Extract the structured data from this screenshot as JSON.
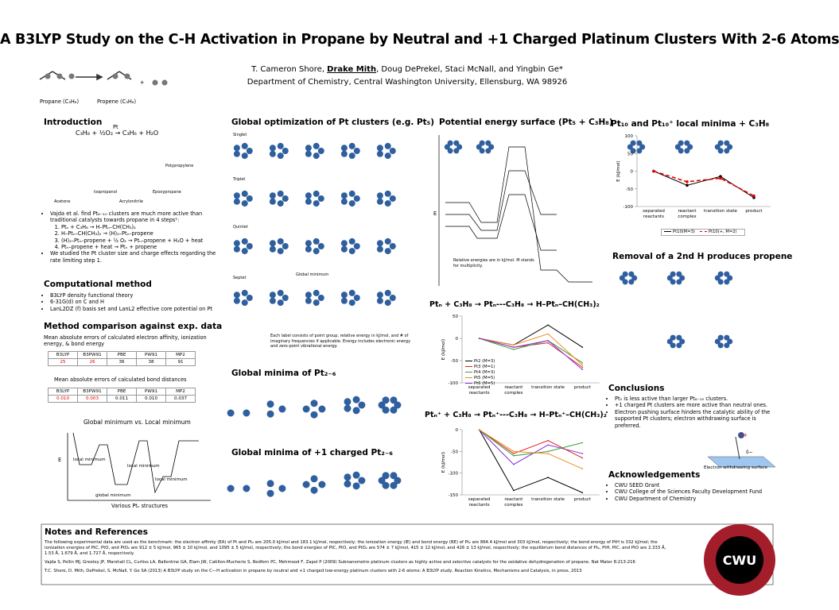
{
  "header": {
    "title": "A B3LYP Study on the C-H Activation in Propane by Neutral and +1 Charged Platinum Clusters With 2-6 Atoms",
    "authors_pre": "T. Cameron Shore, ",
    "author_bold": "Drake Mith",
    "authors_post": ", Doug DePrekel, Staci McNall, and Yingbin Ge*",
    "affiliation": "Department of Chemistry, Central Washington University, Ellensburg, WA 98926"
  },
  "reaction": {
    "propane": "Propane (C₃H₈)",
    "propene": "Propene (C₃H₆)",
    "plus": "+"
  },
  "intro": {
    "heading": "Introduction",
    "equation": "C₃H₈ + ½O₂ → C₃H₆ + H₂O",
    "catalyst": "Pt",
    "products": [
      "Polypropylene",
      "Acetone",
      "Isopropanol",
      "Epoxypropane",
      "Acrylonitrile"
    ],
    "bullet_first": "Vajda et al. find Pt₈₋₁₀ clusters are much more active than traditional catalysts towards propane in 4 steps¹:",
    "steps": [
      "Ptₙ + C₃H₈ → H–Ptₙ–CH(CH₃)₂",
      "H–Ptₙ–CH(CH₃)₂ → (H)₂–Ptₙ–propene",
      "(H)₂–Ptₙ–propene + ½ O₂ → Ptₙ–propene + H₂O + heat",
      "Ptₙ–propene + heat → Ptₙ + propene"
    ],
    "bullet_last": "We studied the Pt cluster size and charge effects regarding the rate limiting step 1."
  },
  "computational": {
    "heading": "Computational method",
    "bullets": [
      "B3LYP density functional theory",
      "6-31G(d) on C and H",
      "LanL2DZ (f) basis set and LanL2 effective core potential on Pt"
    ]
  },
  "comparison": {
    "heading": "Method comparison against exp. data",
    "caption1": "Mean absolute errors of calculated electron affinity, ionization energy, & bond energy",
    "table1": {
      "header": [
        "B3LYP",
        "B3PW91",
        "PBE",
        "PW91",
        "MP2"
      ],
      "row": [
        "25",
        "26",
        "36",
        "38",
        "91"
      ]
    },
    "caption2": "Mean absolute errors of calculated bond distances",
    "table2": {
      "header": [
        "B3LYP",
        "B3PW91",
        "PBE",
        "PW91",
        "MP2"
      ],
      "row": [
        "0.010",
        "0.003",
        "0.011",
        "0.010",
        "0.037"
      ]
    }
  },
  "minima_figure": {
    "title": "Global minimum vs. Local minimum",
    "axis_y": "E",
    "axis_x": "Various Ptₙ structures",
    "labels": [
      "local minimum",
      "local minimum",
      "local minimum",
      "global minimum"
    ]
  },
  "optimization": {
    "heading": "Global optimization of Pt clusters (e.g. Pt₅)",
    "states": [
      "Singlet",
      "Triplet",
      "Quintet",
      "Septet"
    ],
    "global_minimum": "Global minimum",
    "caption": "Each label consists of point group, relative energy in kJ/mol, and # of imaginary frequencies if applicable. Energy includes electronic energy and zero-point vibrational energy."
  },
  "neutral_minima": {
    "heading": "Global minima of Pt₂₋₆"
  },
  "cation_minima": {
    "heading": "Global minima of +1 charged Pt₂₋₆"
  },
  "pes": {
    "heading": "Potential energy surface (Pt₅ + C₃H₈)",
    "note": "Relative energies are in kJ/mol. M stands for multiplicity.",
    "axis_y": "E"
  },
  "charts": [
    {
      "type": "line",
      "title": "Pt₁₀ and Pt₁₀⁺ local minima + C₃H₈",
      "ylabel": "E (kJ/mol)",
      "categories": [
        "separated reactants",
        "reactant complex",
        "transition state",
        "product"
      ],
      "series": [
        {
          "name": "Pt10(M=3)",
          "color": "#000000",
          "values": [
            0,
            -40,
            -15,
            -75
          ],
          "dash": false
        },
        {
          "name": "Pt10(+, M=2)",
          "color": "#e00000",
          "values": [
            0,
            -30,
            -20,
            -70
          ],
          "dash": true
        }
      ],
      "ylim": [
        -100,
        100
      ],
      "yticks": [
        -100,
        -50,
        0,
        50,
        100
      ],
      "legend": "bottom"
    },
    {
      "type": "line",
      "title": "Ptₙ + C₃H₈ → Ptₙ---C₃H₈ → H–Ptₙ–CH(CH₃)₂",
      "ylabel": "E (kJ/mol)",
      "categories": [
        "separated reactants",
        "reactant complex",
        "transition state",
        "product"
      ],
      "series": [
        {
          "name": "Pt2 (M=3)",
          "color": "#000000",
          "values": [
            0,
            -15,
            30,
            -20
          ]
        },
        {
          "name": "Pt3 (M=1)",
          "color": "#e02020",
          "values": [
            0,
            -20,
            -10,
            -65
          ]
        },
        {
          "name": "Pt4 (M=3)",
          "color": "#3aa03a",
          "values": [
            0,
            -25,
            -5,
            -55
          ]
        },
        {
          "name": "Pt5 (M=5)",
          "color": "#f08a1e",
          "values": [
            0,
            -15,
            10,
            -60
          ]
        },
        {
          "name": "Pt6 (M=5)",
          "color": "#8a2be2",
          "values": [
            0,
            -20,
            -5,
            -70
          ]
        }
      ],
      "ylim": [
        -100,
        50
      ],
      "yticks": [
        -100,
        -50,
        0,
        50
      ],
      "legend": "lower left"
    },
    {
      "type": "line",
      "title": "Ptₙ⁺ + C₃H₈ → Ptₙ⁺---C₃H₈ → H–Ptₙ⁺–CH(CH₃)₂",
      "ylabel": "E (kJ/mol)",
      "categories": [
        "separated reactants",
        "reactant complex",
        "transition state",
        "product"
      ],
      "series": [
        {
          "color": "#000000",
          "values": [
            0,
            -140,
            -110,
            -145
          ]
        },
        {
          "color": "#8a2be2",
          "values": [
            0,
            -80,
            -35,
            -55
          ]
        },
        {
          "color": "#e02020",
          "values": [
            0,
            -55,
            -25,
            -65
          ]
        },
        {
          "color": "#3aa03a",
          "values": [
            0,
            -60,
            -50,
            -30
          ]
        },
        {
          "color": "#f08a1e",
          "values": [
            0,
            -50,
            -55,
            -90
          ]
        }
      ],
      "ylim": [
        -150,
        0
      ],
      "yticks": [
        -150,
        -100,
        -50,
        0
      ]
    }
  ],
  "removal": {
    "heading": "Removal of a 2nd H produces propene"
  },
  "conclusions": {
    "heading": "Conclusions",
    "bullets": [
      "Pt₅ is less active than larger Pt₈₋₁₀ clusters.",
      "+1 charged Pt clusters are more active than neutral ones.",
      "Electron pushing surface hinders the catalytic ability of the supported Pt clusters; electron withdrawing surface is preferred."
    ],
    "figure_caption": "Electron withdrawing surface",
    "delta_plus": "δ+",
    "delta_minus": "δ−"
  },
  "acknowledgements": {
    "heading": "Acknowledgements",
    "bullets": [
      "CWU SEED Grant",
      "CWU College of the Sciences Faculty Development Fund",
      "CWU Department of Chemistry"
    ]
  },
  "notes": {
    "heading": "Notes and References",
    "paragraph": "The following experimental data are used as the benchmark: the electron affinity (EA) of Pt and Pt₂ are 205.0 kJ/mol and 183.1 kJ/mol, respectively; the ionization energy (IE) and bond energy (BE) of Pt₂ are 864.4 kJ/mol and 303 kJ/mol, respectively; the bond energy of PtH is 332 kJ/mol; the ionization energies of PtC, PtO, and PtO₂ are 912 ± 5 kJ/mol, 965 ± 10 kJ/mol, and 1095 ± 5 kJ/mol, respectively; the bond energies of PtC, PtO, and PtO₂ are 574 ± 7 kJ/mol, 415 ± 12 kJ/mol, and 426 ± 13 kJ/mol, respectively; the equilibrium bond distances of Pt₂, PtH, PtC, and PtO are 2.333 Å, 1.53 Å, 1.679 Å, and 1.727 Å, respectively.",
    "references": [
      "Vajda S, Pellin MJ, Greeley JP, Marshall CL, Curtiss LA, Ballentine GA, Elam JW, Catillon-Mucherie S, Redfern PC, Mehmood F, Zapol P (2009) Subnanometre platinum clusters as highly active and selective catalysts for the oxidative dehydrogenation of propane. Nat Mater 8:213-216",
      "T.C. Shore, D. Mith, DePrekel, S. McNall, Y. Ge SA (2013) A B3LYP study on the C—H activation in propane by neutral and +1 charged low-energy platinum clusters with 2-6 atoms: A B3LYP study, Reaction Kinetics, Mechanisms and Catalysis, in press, 2013"
    ]
  },
  "logo": {
    "text": "CWU"
  }
}
